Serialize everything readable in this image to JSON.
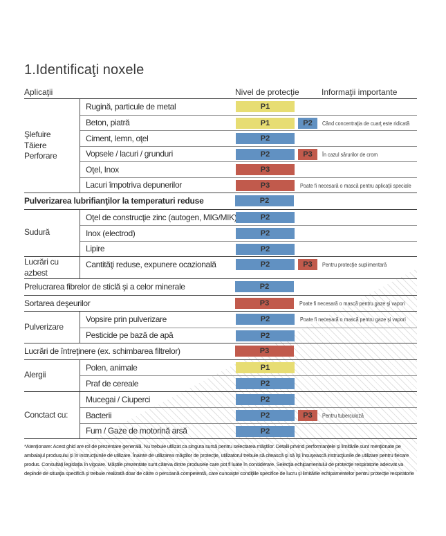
{
  "page": {
    "title": "1.Identificaţi noxele",
    "columns": {
      "applications": "Aplicaţii",
      "protection": "Nivel de protecţie",
      "info": "Informaţii importante"
    },
    "level_colors": {
      "P1": "#e7dd73",
      "P2": "#6191c2",
      "P3": "#c15a4c"
    },
    "table": {
      "sections": [
        {
          "label": "Şlefuire\nTăiere\nPerforare",
          "rows": [
            {
              "text": "Rugină, particule de metal",
              "level": "P1"
            },
            {
              "text": "Beton, piatră",
              "level": "P1",
              "extra_level": "P2",
              "info": "Când concentraţia de cuarţ este ridicată"
            },
            {
              "text": "Ciment, lemn, oţel",
              "level": "P2"
            },
            {
              "text": "Vopsele / lacuri / grunduri",
              "level": "P2",
              "extra_level": "P3",
              "info": "În cazul sărurilor de crom"
            },
            {
              "text": "Oţel, Inox",
              "level": "P3"
            },
            {
              "text": "Lacuri împotriva depunerilor",
              "level": "P3",
              "info": "Poate fi necesară o mască pentru aplicaţii speciale"
            }
          ]
        },
        {
          "full": true,
          "bold": true,
          "rows": [
            {
              "text": "Pulverizarea lubrifianţilor la temperaturi reduse",
              "level": "P2"
            }
          ]
        },
        {
          "label": "Sudură",
          "rows": [
            {
              "text": "Oţel de construcţie zinc (autogen, MIG/MIK)",
              "level": "P2"
            },
            {
              "text": "Inox (electrod)",
              "level": "P2"
            },
            {
              "text": "Lipire",
              "level": "P2"
            }
          ]
        },
        {
          "label": "Lucrări cu azbest",
          "rows": [
            {
              "text": "Cantităţi reduse, expunere ocazională",
              "level": "P2",
              "extra_level": "P3",
              "info": "Pentru protecţie suplimentară"
            }
          ]
        },
        {
          "full": true,
          "rows": [
            {
              "text": "Prelucrarea fibrelor de sticlă şi a celor minerale",
              "level": "P2"
            }
          ]
        },
        {
          "full": true,
          "rows": [
            {
              "text": "Sortarea deşeurilor",
              "level": "P3",
              "info": "Poate fi necesară o mască pentru gaze şi vapori"
            }
          ]
        },
        {
          "label": "Pulverizare",
          "rows": [
            {
              "text": "Vopsire prin pulverizare",
              "level": "P2",
              "info": "Poate fi necesară o mască pentru gaze şi vapori"
            },
            {
              "text": "Pesticide pe bază de apă",
              "level": "P2"
            }
          ]
        },
        {
          "full": true,
          "rows": [
            {
              "text": "Lucrări de întreţinere (ex. schimbarea filtrelor)",
              "level": "P3"
            }
          ]
        },
        {
          "label": "Alergii",
          "rows": [
            {
              "text": "Polen, animale",
              "level": "P1"
            },
            {
              "text": "Praf de cereale",
              "level": "P2"
            }
          ]
        },
        {
          "label": "Conctact cu:",
          "rows": [
            {
              "text": "Mucegai / Ciuperci",
              "level": "P2"
            },
            {
              "text": "Bacterii",
              "level": "P2",
              "extra_level": "P3",
              "info": "Pentru tuberculoză"
            },
            {
              "text": "Fum / Gaze de motorină arsă",
              "level": "P2"
            }
          ]
        }
      ]
    },
    "footnote": "*Atenţionare: Acest ghid are rol de prezentare generală. Nu trebuie utilizat ca singura sursă pentru selectarea măştilor. Detalii privind performanţele şi limitările sunt menţionate pe ambalajul produsului şi în instrucţiunile de utilizare. Înainte de utilizarea măştilor de protecţie, utilizatorul trebuie să citească şi să îşi însuşească instrucţiunile de utilizare pentru fiecare produs. Consultaţi legislaţia în vigoare. Măştile prezentate sunt câteva dintre produsele care pot fi luate în considerare. Selecţia echipamentului de protecţie respiratorie adecvat va depinde de situaţia specifică şi trebuie realizată doar de către o persoană competentă, care cunoaşte condiţiile specifice de lucru şi limitările echipamentelor pentru protecţie respiratorie"
  }
}
